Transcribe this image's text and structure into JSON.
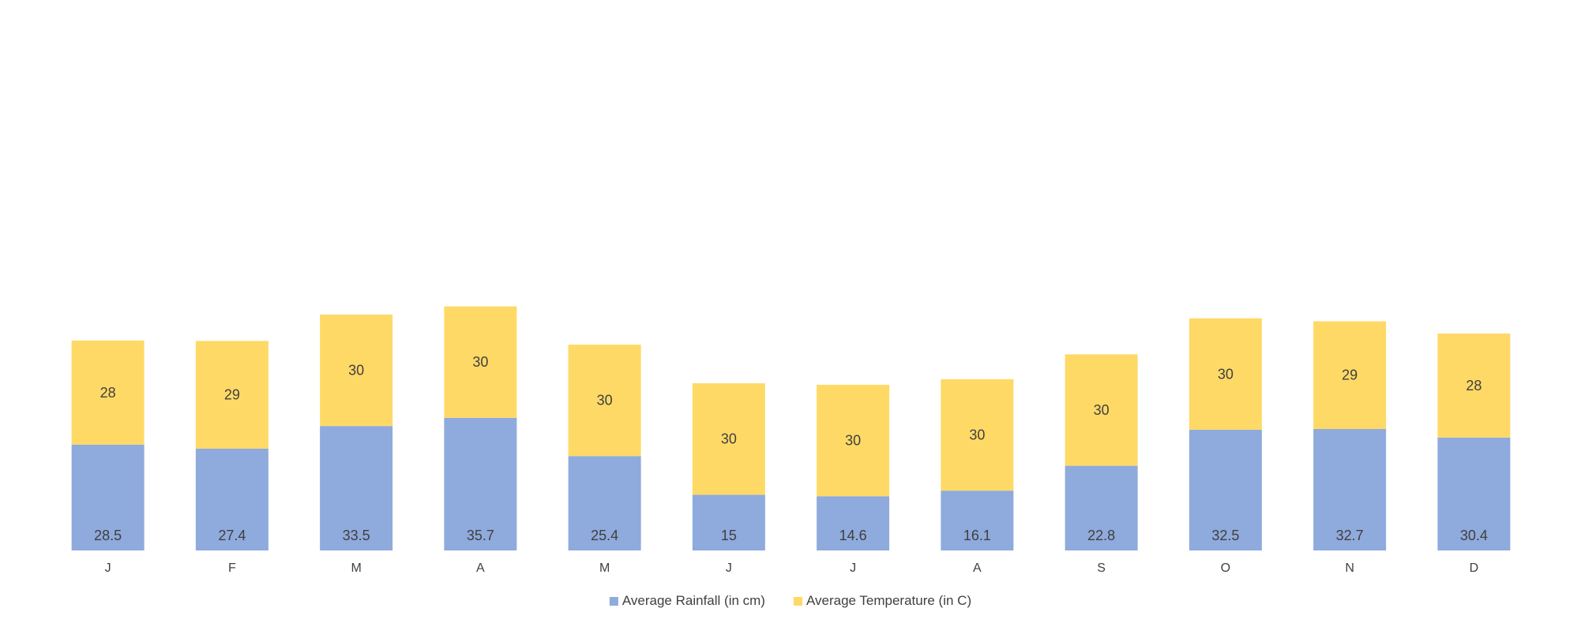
{
  "chart_data": {
    "type": "bar",
    "stacked": true,
    "title": "",
    "xlabel": "",
    "ylabel": "",
    "ylim": [
      0,
      70
    ],
    "grid": false,
    "legend_position": "bottom",
    "categories": [
      "J",
      "F",
      "M",
      "A",
      "M",
      "J",
      "J",
      "A",
      "S",
      "O",
      "N",
      "D"
    ],
    "series": [
      {
        "name": "Average Rainfall (in cm)",
        "color": "#8FAADC",
        "values": [
          28.5,
          27.4,
          33.5,
          35.7,
          25.4,
          15,
          14.6,
          16.1,
          22.8,
          32.5,
          32.7,
          30.4
        ]
      },
      {
        "name": "Average Temperature (in C)",
        "color": "#FFD966",
        "values": [
          28,
          29,
          30,
          30,
          30,
          30,
          30,
          30,
          30,
          30,
          29,
          28
        ]
      }
    ]
  }
}
